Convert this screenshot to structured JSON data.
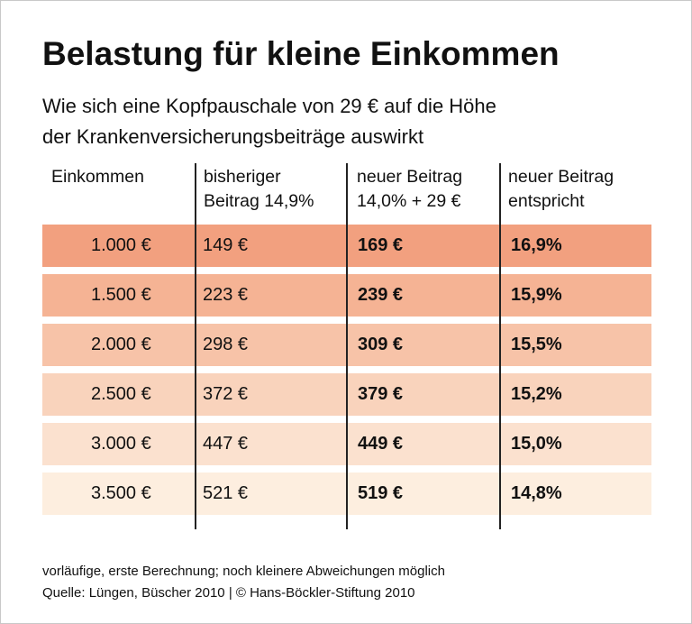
{
  "header": {
    "title": "Belastung für kleine Einkommen",
    "subtitle": [
      "Wie sich eine Kopfpauschale von 29 € auf die Höhe",
      "der Krankenversicherungsbeiträge auswirkt"
    ]
  },
  "table": {
    "columns": [
      [
        "Einkommen"
      ],
      [
        "bisheriger",
        "Beitrag 14,9%"
      ],
      [
        "neuer Beitrag",
        "14,0% + 29 €"
      ],
      [
        "neuer Beitrag",
        "entspricht"
      ]
    ],
    "rows": [
      [
        "1.000 €",
        "149 €",
        "169 €",
        "16,9%"
      ],
      [
        "1.500 €",
        "223 €",
        "239 €",
        "15,9%"
      ],
      [
        "2.000 €",
        "298 €",
        "309 €",
        "15,5%"
      ],
      [
        "2.500 €",
        "372 €",
        "379 €",
        "15,2%"
      ],
      [
        "3.000 €",
        "447 €",
        "449 €",
        "15,0%"
      ],
      [
        "3.500 €",
        "521 €",
        "519 €",
        "14,8%"
      ]
    ]
  },
  "footer": [
    "vorläufige, erste Berechnung; noch kleinere Abweichungen möglich",
    "Quelle: Lüngen, Büscher 2010 | © Hans-Böckler-Stiftung 2010"
  ]
}
